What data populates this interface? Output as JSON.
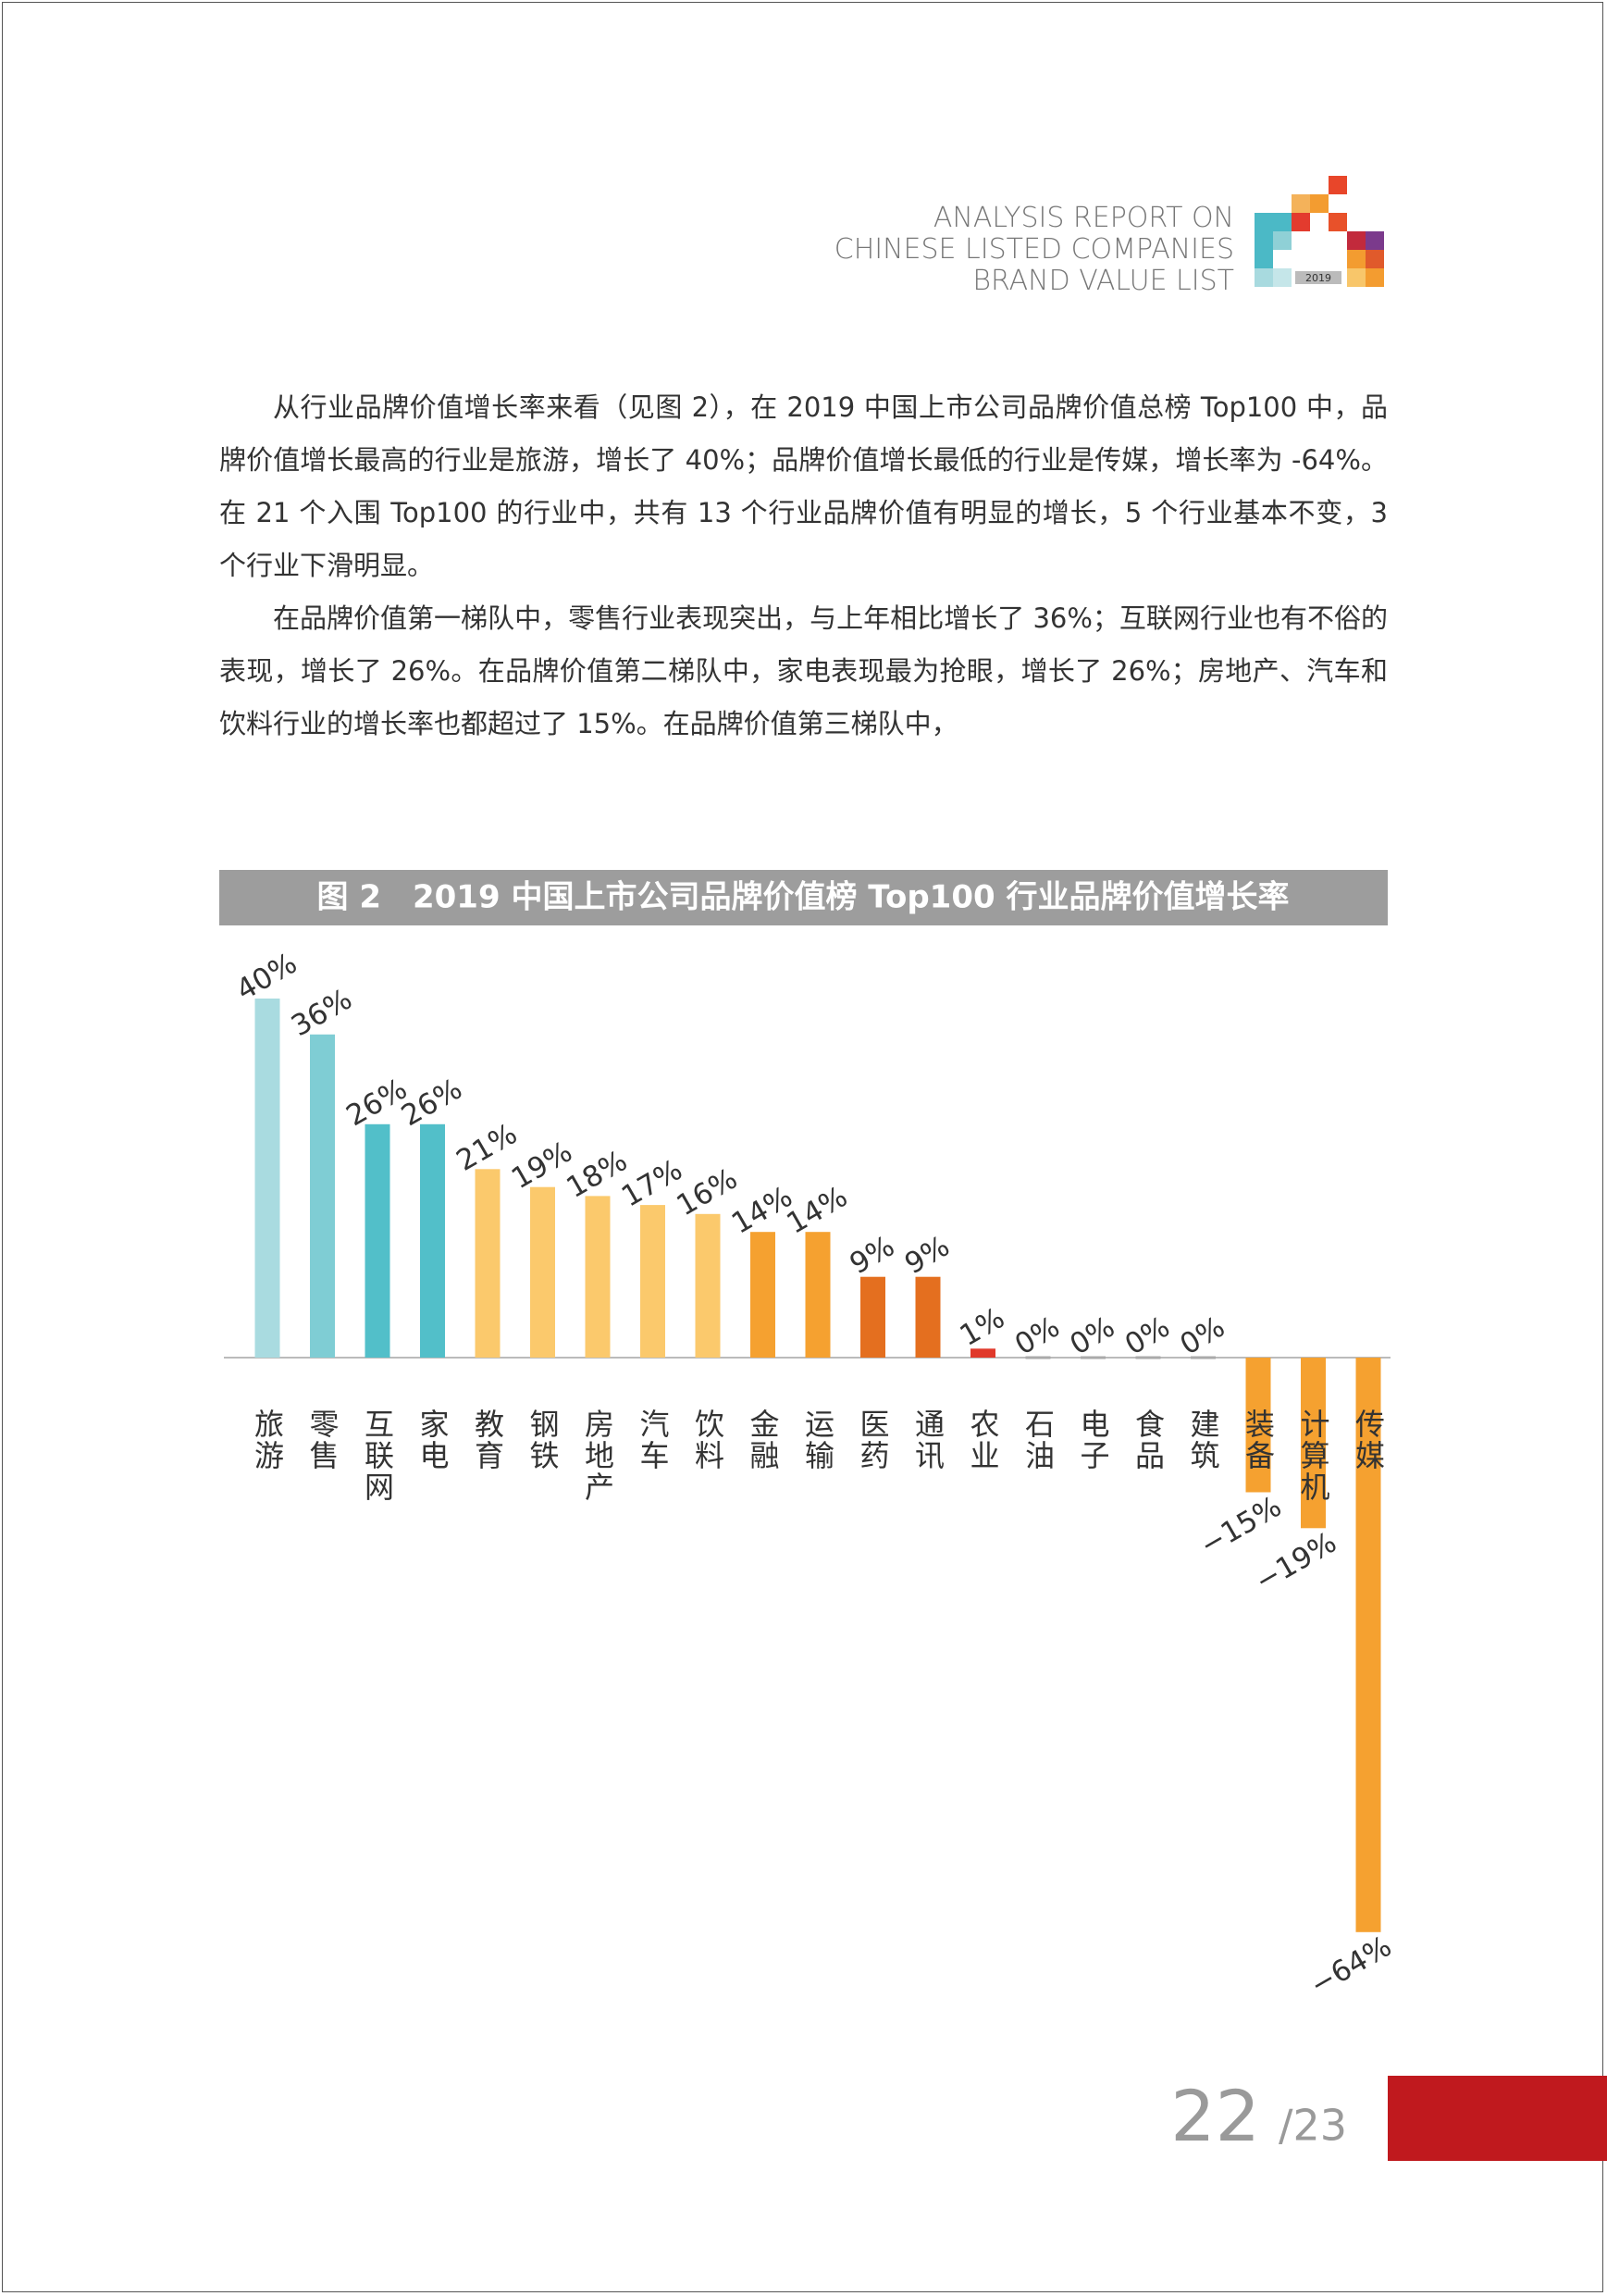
{
  "header": {
    "lines": [
      "ANALYSIS REPORT ON",
      "CHINESE LISTED COMPANIES",
      "BRAND VALUE LIST"
    ],
    "logo_year": "2019"
  },
  "paragraphs": [
    "从行业品牌价值增长率来看（见图 2），在 2019 中国上市公司品牌价值总榜 Top100 中，品牌价值增长最高的行业是旅游，增长了 40%；品牌价值增长最低的行业是传媒，增长率为 -64%。在 21 个入围 Top100 的行业中，共有 13 个行业品牌价值有明显的增长，5 个行业基本不变，3 个行业下滑明显。",
    "在品牌价值第一梯队中，零售行业表现突出，与上年相比增长了 36%；互联网行业也有不俗的表现，增长了 26%。在品牌价值第二梯队中，家电表现最为抢眼，增长了 26%；房地产、汽车和饮料行业的增长率也都超过了 15%。在品牌价值第三梯队中，"
  ],
  "chart_data": {
    "type": "bar",
    "title": "图 2　2019 中国上市公司品牌价值榜 Top100 行业品牌价值增长率",
    "categories": [
      "旅游",
      "零售",
      "互联网",
      "家电",
      "教育",
      "钢铁",
      "房地产",
      "汽车",
      "饮料",
      "金融",
      "运输",
      "医药",
      "通讯",
      "农业",
      "石油",
      "电子",
      "食品",
      "建筑",
      "装备",
      "计算机",
      "传媒"
    ],
    "values": [
      40,
      36,
      26,
      26,
      21,
      19,
      18,
      17,
      16,
      14,
      14,
      9,
      9,
      1,
      0,
      0,
      0,
      0,
      -15,
      -19,
      -64
    ],
    "value_labels": [
      "40%",
      "36%",
      "26%",
      "26%",
      "21%",
      "19%",
      "18%",
      "17%",
      "16%",
      "14%",
      "14%",
      "9%",
      "9%",
      "1%",
      "0%",
      "0%",
      "0%",
      "0%",
      "−15%",
      "−19%",
      "−64%"
    ],
    "colors": [
      "#a9dbe0",
      "#7fcdd4",
      "#52bfc9",
      "#52bfc9",
      "#fbc96c",
      "#fbc96c",
      "#fbc96c",
      "#fbc96c",
      "#fbc96c",
      "#f5a130",
      "#f5a130",
      "#e46f1f",
      "#e46f1f",
      "#e0392b",
      "#aaaaaa",
      "#aaaaaa",
      "#aaaaaa",
      "#aaaaaa",
      "#f5a130",
      "#f5a130",
      "#f5a130"
    ]
  },
  "page": {
    "current": "22",
    "total": "/23"
  }
}
